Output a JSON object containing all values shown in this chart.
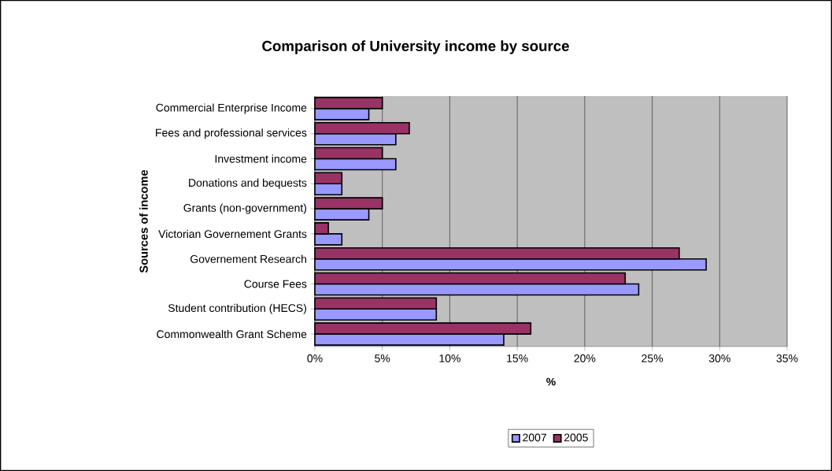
{
  "chart_data": {
    "type": "bar",
    "orientation": "horizontal",
    "title": "Comparison of University income by source",
    "xlabel": "%",
    "ylabel": "Sources of income",
    "categories": [
      "Commercial Enterprise Income",
      "Fees and professional services",
      "Investment income",
      "Donations and bequests",
      "Grants (non-government)",
      "Victorian Governement Grants",
      "Governement Research",
      "Course Fees",
      "Student contribution (HECS)",
      "Commonwealth Grant Scheme"
    ],
    "series": [
      {
        "name": "2007",
        "color": "#9999ff",
        "values": [
          4,
          6,
          6,
          2,
          4,
          2,
          29,
          24,
          9,
          14
        ]
      },
      {
        "name": "2005",
        "color": "#993366",
        "values": [
          5,
          7,
          5,
          2,
          5,
          1,
          27,
          23,
          9,
          16
        ]
      }
    ],
    "xlim": [
      0,
      35
    ],
    "xticks": [
      {
        "value": 0,
        "label": "0%"
      },
      {
        "value": 5,
        "label": "5%"
      },
      {
        "value": 10,
        "label": "10%"
      },
      {
        "value": 15,
        "label": "15%"
      },
      {
        "value": 20,
        "label": "20%"
      },
      {
        "value": 25,
        "label": "25%"
      },
      {
        "value": 30,
        "label": "30%"
      },
      {
        "value": 35,
        "label": "35%"
      }
    ],
    "grid": "x",
    "legend": "bottom"
  }
}
